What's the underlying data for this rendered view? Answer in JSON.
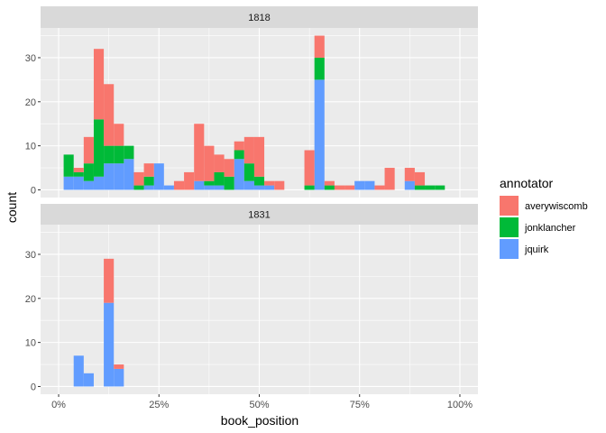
{
  "chart_data": {
    "type": "bar",
    "stacked": true,
    "xlabel": "book_position",
    "ylabel": "count",
    "xlim": [
      -0.045,
      1.045
    ],
    "ylim": [
      -1.75,
      36.75
    ],
    "x_ticks": [
      0,
      0.25,
      0.5,
      0.75,
      1
    ],
    "x_tick_labels": [
      "0%",
      "25%",
      "50%",
      "75%",
      "100%"
    ],
    "y_ticks": [
      0,
      10,
      20,
      30
    ],
    "y_tick_labels": [
      "0",
      "10",
      "20",
      "30"
    ],
    "bin_width": 0.025,
    "grid": true,
    "legend": {
      "title": "annotator",
      "position": "right",
      "entries": [
        {
          "name": "averywiscomb",
          "color": "#F8766D"
        },
        {
          "name": "jonklancher",
          "color": "#00BA38"
        },
        {
          "name": "jquirk",
          "color": "#619CFF"
        }
      ]
    },
    "panels": [
      {
        "title": "1818",
        "bins": [
          0.025,
          0.05,
          0.075,
          0.1,
          0.125,
          0.15,
          0.175,
          0.2,
          0.225,
          0.25,
          0.275,
          0.3,
          0.325,
          0.35,
          0.375,
          0.4,
          0.425,
          0.45,
          0.475,
          0.5,
          0.525,
          0.55,
          0.575,
          0.6,
          0.625,
          0.65,
          0.675,
          0.7,
          0.725,
          0.75,
          0.775,
          0.8,
          0.825,
          0.85,
          0.875,
          0.9,
          0.925,
          0.95
        ],
        "series": [
          {
            "name": "jquirk",
            "values": [
              3,
              3,
              2,
              3,
              6,
              6,
              7,
              0,
              1,
              6,
              1,
              0,
              0,
              2,
              1,
              1,
              0,
              7,
              2,
              1,
              1,
              0,
              0,
              0,
              0,
              25,
              0,
              0,
              0,
              2,
              2,
              0,
              0,
              0,
              2,
              0,
              0,
              0
            ]
          },
          {
            "name": "jonklancher",
            "values": [
              5,
              1,
              4,
              13,
              4,
              4,
              3,
              1,
              2,
              0,
              0,
              0,
              0,
              0,
              1,
              3,
              3,
              2,
              4,
              2,
              0,
              0,
              0,
              0,
              1,
              5,
              1,
              0,
              0,
              0,
              0,
              0,
              0,
              0,
              0,
              1,
              1,
              1
            ]
          },
          {
            "name": "averywiscomb",
            "values": [
              0,
              1,
              6,
              16,
              14,
              5,
              0,
              3,
              3,
              0,
              0,
              2,
              4,
              13,
              8,
              4,
              4,
              2,
              6,
              9,
              1,
              2,
              0,
              0,
              8,
              5,
              1,
              1,
              1,
              0,
              0,
              1,
              5,
              0,
              3,
              3,
              0,
              0
            ]
          }
        ]
      },
      {
        "title": "1831",
        "bins": [
          0.05,
          0.075,
          0.1,
          0.125,
          0.15
        ],
        "series": [
          {
            "name": "jquirk",
            "values": [
              7,
              3,
              0,
              19,
              4
            ]
          },
          {
            "name": "jonklancher",
            "values": [
              0,
              0,
              0,
              0,
              0
            ]
          },
          {
            "name": "averywiscomb",
            "values": [
              0,
              0,
              0,
              10,
              1
            ]
          }
        ]
      }
    ]
  }
}
